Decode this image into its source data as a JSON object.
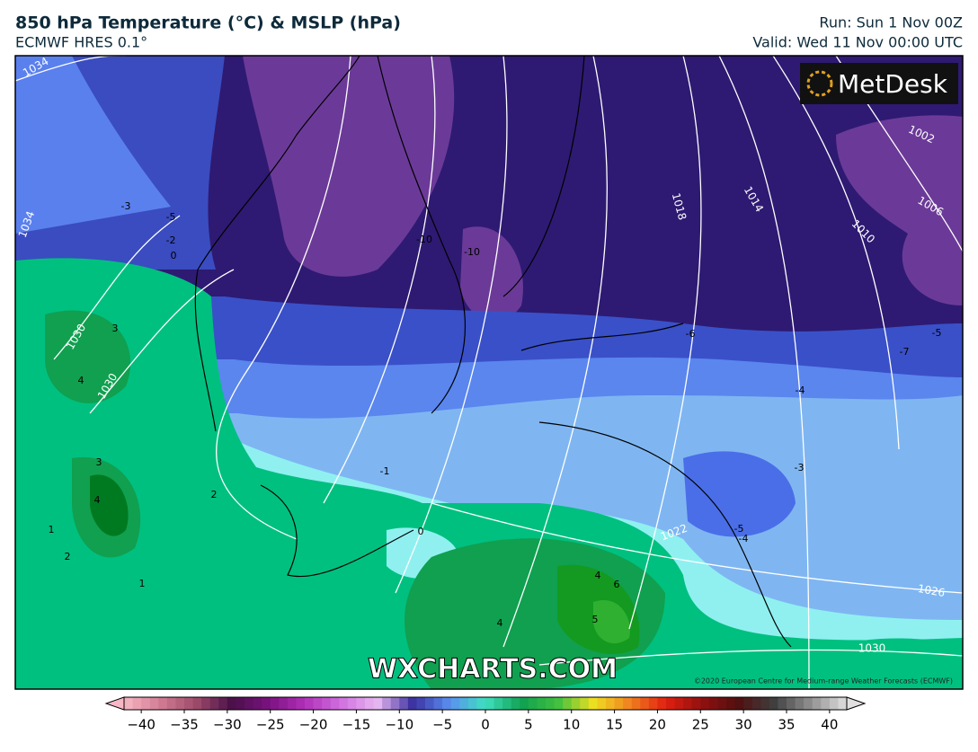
{
  "header": {
    "title": "850 hPa Temperature (°C) & MSLP (hPa)",
    "model": "ECMWF HRES 0.1°",
    "run": "Run: Sun 1 Nov 00Z",
    "valid": "Valid: Wed 11 Nov 00:00 UTC"
  },
  "logo": "MetDesk",
  "watermark": "WXCHARTS.COM",
  "credit": "©2020 European Centre for Medium-range Weather Forecasts (ECMWF)",
  "isobar_labels": [
    "1034",
    "1034",
    "1030",
    "1030",
    "1026",
    "1022",
    "1018",
    "1014",
    "1010",
    "1006",
    "1002",
    "1030"
  ],
  "temperature_labels": [
    "-3",
    "-5",
    "-2",
    "0",
    "3",
    "4",
    "3",
    "4",
    "2",
    "1",
    "2",
    "1",
    "-10",
    "-10",
    "-6",
    "-7",
    "-4",
    "-5",
    "-1",
    "0",
    "-3",
    "-5",
    "-4",
    "4",
    "6",
    "5",
    "4"
  ],
  "colorbar": {
    "lim": [
      -42,
      42
    ],
    "ticks": [
      {
        "value": -40,
        "label": "−40"
      },
      {
        "value": -35,
        "label": "−35"
      },
      {
        "value": -30,
        "label": "−30"
      },
      {
        "value": -25,
        "label": "−25"
      },
      {
        "value": -20,
        "label": "−20"
      },
      {
        "value": -15,
        "label": "−15"
      },
      {
        "value": -10,
        "label": "−10"
      },
      {
        "value": -5,
        "label": "−5"
      },
      0,
      5,
      10,
      15,
      20,
      25,
      30,
      35,
      40
    ],
    "colors": [
      "#f7b7c4",
      "#d27c94",
      "#9c4a6a",
      "#4a1048",
      "#7a1280",
      "#b030b8",
      "#d070e0",
      "#e8b8f0",
      "#3a30a0",
      "#5a8ef0",
      "#40e0c0",
      "#10a050",
      "#40c040",
      "#f0e020",
      "#f08020",
      "#e02010",
      "#901010",
      "#501010",
      "#404040",
      "#909090",
      "#e0e0e0"
    ]
  }
}
